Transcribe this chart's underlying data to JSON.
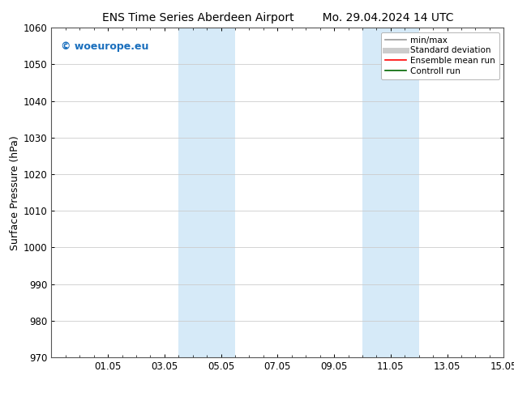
{
  "title_left": "ENS Time Series Aberdeen Airport",
  "title_right": "Mo. 29.04.2024 14 UTC",
  "ylabel": "Surface Pressure (hPa)",
  "ylim": [
    970,
    1060
  ],
  "yticks": [
    970,
    980,
    990,
    1000,
    1010,
    1020,
    1030,
    1040,
    1050,
    1060
  ],
  "xtick_labels": [
    "01.05",
    "03.05",
    "05.05",
    "07.05",
    "09.05",
    "11.05",
    "13.05",
    "15.05"
  ],
  "xtick_positions": [
    2,
    4,
    6,
    8,
    10,
    12,
    14,
    16
  ],
  "xlim": [
    0,
    16
  ],
  "shaded_bands": [
    {
      "x_start": 4.5,
      "x_end": 5.5
    },
    {
      "x_start": 5.5,
      "x_end": 6.5
    },
    {
      "x_start": 11.0,
      "x_end": 12.0
    },
    {
      "x_start": 12.0,
      "x_end": 13.0
    }
  ],
  "shaded_color": "#d6eaf8",
  "watermark_text": "© woeurope.eu",
  "watermark_color": "#1a6fbd",
  "legend_items": [
    {
      "label": "min/max",
      "color": "#999999",
      "lw": 1.2,
      "style": "solid"
    },
    {
      "label": "Standard deviation",
      "color": "#cccccc",
      "lw": 5,
      "style": "solid"
    },
    {
      "label": "Ensemble mean run",
      "color": "#ff0000",
      "lw": 1.2,
      "style": "solid"
    },
    {
      "label": "Controll run",
      "color": "#006600",
      "lw": 1.2,
      "style": "solid"
    }
  ],
  "bg_color": "#ffffff",
  "grid_color": "#cccccc",
  "tick_label_fontsize": 8.5,
  "title_fontsize": 10,
  "ylabel_fontsize": 9,
  "watermark_fontsize": 9
}
